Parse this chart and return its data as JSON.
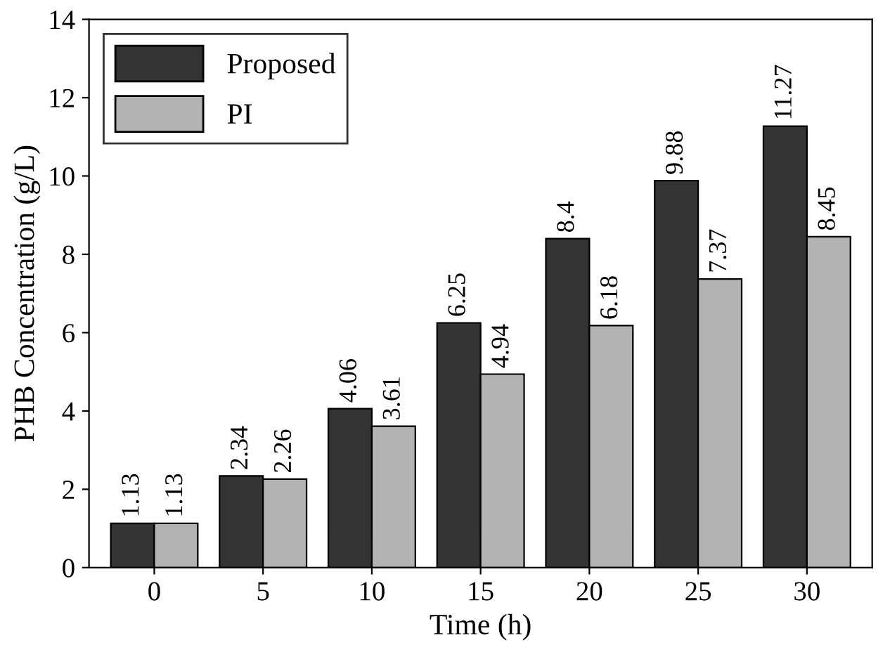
{
  "chart_data": {
    "type": "bar",
    "xlabel": "Time (h)",
    "ylabel": "PHB Concentration (g/L)",
    "categories": [
      "0",
      "5",
      "10",
      "15",
      "20",
      "25",
      "30"
    ],
    "series": [
      {
        "name": "Proposed",
        "color": "#333333",
        "values": [
          1.13,
          2.34,
          4.06,
          6.25,
          8.4,
          9.88,
          11.27
        ]
      },
      {
        "name": "PI",
        "color": "#b3b3b3",
        "values": [
          1.13,
          2.26,
          3.61,
          4.94,
          6.18,
          7.37,
          8.45
        ]
      }
    ],
    "ylim": [
      0,
      14
    ],
    "yticks": [
      0,
      2,
      4,
      6,
      8,
      10,
      12,
      14
    ],
    "data_labels": true,
    "legend": "top left",
    "grid": false
  }
}
